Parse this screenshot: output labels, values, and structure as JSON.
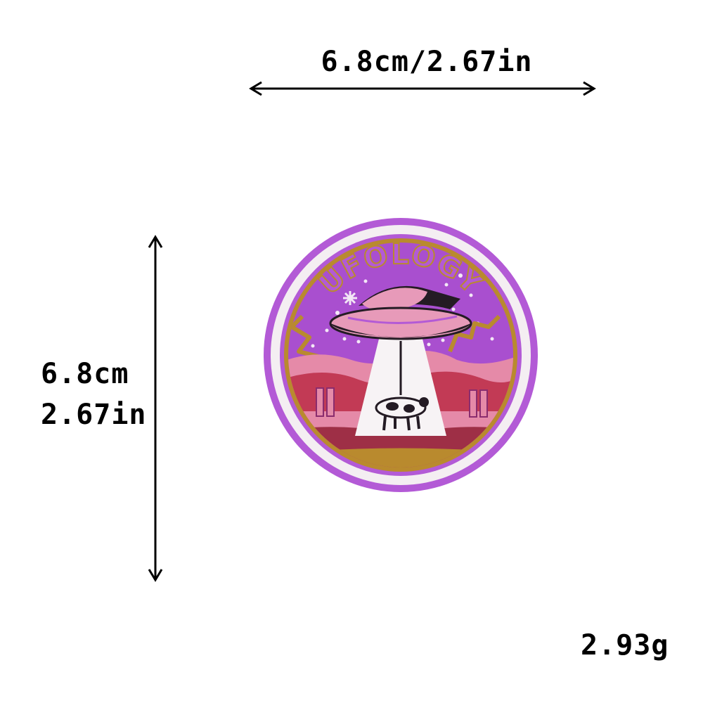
{
  "dimensions": {
    "width_label": "6.8cm/2.67in",
    "height_label_cm": "6.8cm",
    "height_label_in": "2.67in",
    "weight_label": "2.93g"
  },
  "patch": {
    "text": "UFOLOGY",
    "colors": {
      "outer_ring": "#b35ad6",
      "white_ring": "#f4eef2",
      "gold_ring": "#b98a2e",
      "sky": "#a94fcf",
      "ufo_pink": "#e79ab9",
      "ufo_dark": "#241b24",
      "beam": "#f7f3f5",
      "hills_pink": "#e58aa8",
      "hills_red": "#c23a55",
      "ground": "#9e2f46"
    },
    "icons": [
      "ufo-icon",
      "cow-icon",
      "lightning-icon",
      "star-icon"
    ]
  }
}
